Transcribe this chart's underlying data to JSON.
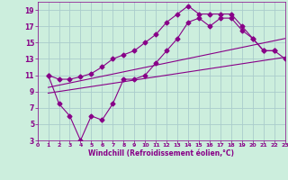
{
  "xlabel": "Windchill (Refroidissement éolien,°C)",
  "bg_color": "#cceedd",
  "line_color": "#880088",
  "grid_color": "#aacccc",
  "xlim": [
    0,
    23
  ],
  "ylim": [
    3,
    20
  ],
  "xticks": [
    0,
    1,
    2,
    3,
    4,
    5,
    6,
    7,
    8,
    9,
    10,
    11,
    12,
    13,
    14,
    15,
    16,
    17,
    18,
    19,
    20,
    21,
    22,
    23
  ],
  "yticks": [
    3,
    5,
    7,
    9,
    11,
    13,
    15,
    17,
    19
  ],
  "line1_x": [
    1,
    2,
    3,
    4,
    5,
    6,
    7,
    8,
    9,
    10,
    11,
    12,
    13,
    14,
    15,
    16,
    17,
    18,
    19,
    20,
    21,
    22,
    23
  ],
  "line1_y": [
    11.0,
    10.5,
    10.5,
    10.8,
    11.2,
    12.0,
    13.0,
    13.5,
    14.0,
    15.0,
    16.0,
    17.5,
    18.5,
    19.5,
    18.5,
    18.5,
    18.5,
    18.5,
    17.0,
    15.5,
    14.0,
    14.0,
    13.0
  ],
  "line2_x": [
    1,
    2,
    3,
    4,
    5,
    6,
    7,
    8,
    9,
    10,
    11,
    12,
    13,
    14,
    15,
    16,
    17,
    18,
    19,
    20,
    21,
    22
  ],
  "line2_y": [
    11.0,
    7.5,
    6.0,
    3.0,
    6.0,
    5.5,
    7.5,
    10.5,
    10.5,
    11.0,
    12.5,
    14.0,
    15.5,
    17.5,
    18.0,
    17.0,
    18.0,
    18.0,
    16.5,
    15.5,
    14.0,
    14.0
  ],
  "line3_x": [
    1,
    23
  ],
  "line3_y": [
    8.8,
    13.2
  ],
  "line4_x": [
    1,
    23
  ],
  "line4_y": [
    9.5,
    15.5
  ]
}
